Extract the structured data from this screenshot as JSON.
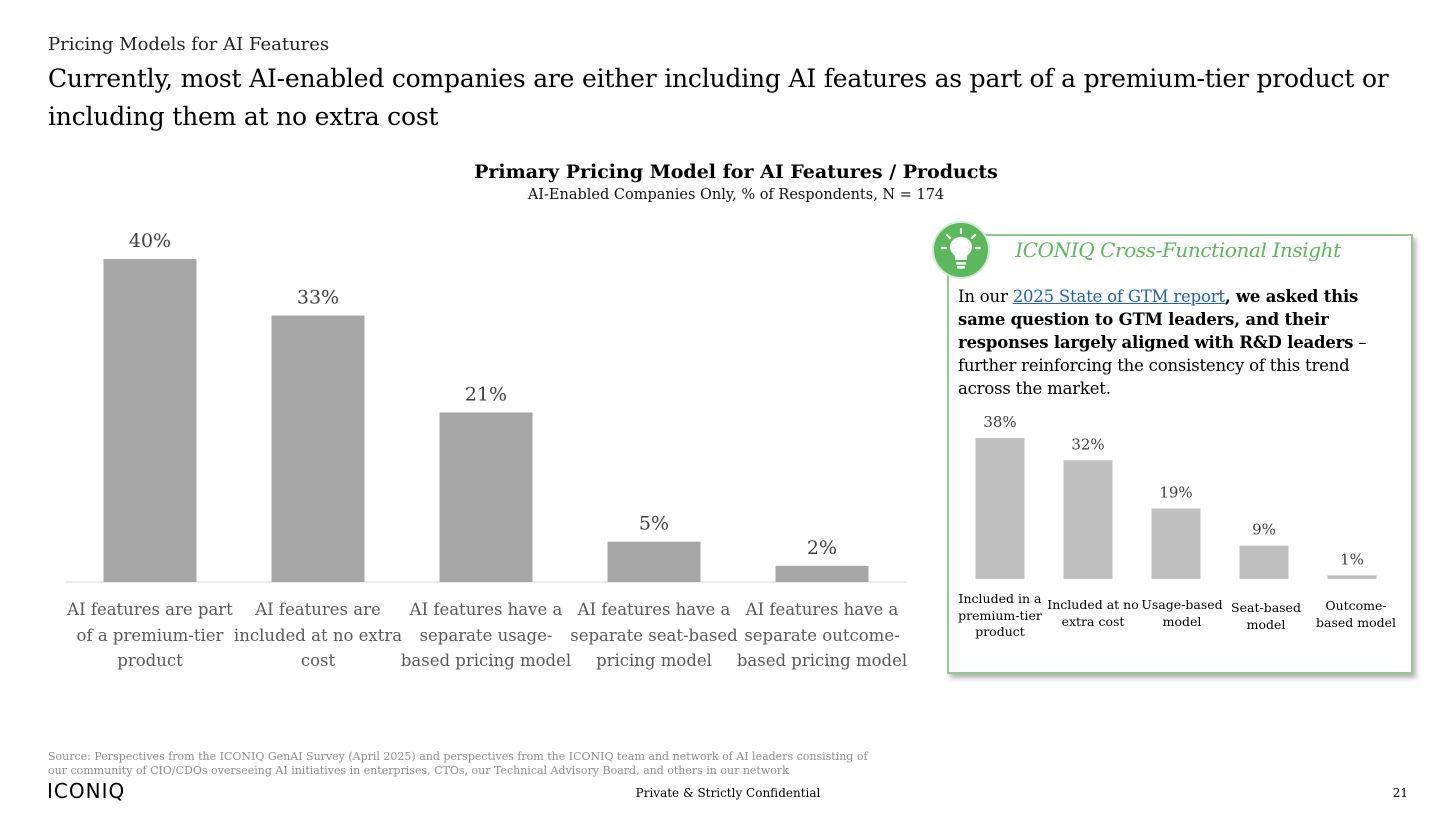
{
  "eyebrow": "Pricing Models for AI Features",
  "headline": "Currently, most AI-enabled companies are either including AI features as part of a premium-tier product or including them at no extra cost",
  "chart_data": [
    {
      "type": "bar",
      "title": "Primary Pricing Model for AI Features / Products",
      "subtitle": "AI-Enabled Companies Only, % of Respondents, N = 174",
      "categories": [
        "AI features are part of a premium-tier product",
        "AI features are included at no extra cost",
        "AI features have a separate usage-based pricing model",
        "AI features have a separate seat-based pricing model",
        "AI features have a separate outcome-based pricing model"
      ],
      "values": [
        40,
        33,
        21,
        5,
        2
      ],
      "data_labels": [
        "40%",
        "33%",
        "21%",
        "5%",
        "2%"
      ],
      "unit": "%",
      "ylim": [
        0,
        40
      ],
      "grid": false,
      "bar_color": "#a6a6a6"
    },
    {
      "type": "bar",
      "categories": [
        "Included in a premium-tier product",
        "Included at no extra cost",
        "Usage-based model",
        "Seat-based model",
        "Outcome-based model"
      ],
      "values": [
        38,
        32,
        19,
        9,
        1
      ],
      "data_labels": [
        "38%",
        "32%",
        "19%",
        "9%",
        "1%"
      ],
      "unit": "%",
      "ylim": [
        0,
        38
      ],
      "grid": false,
      "bar_color": "#bfbfbf"
    }
  ],
  "insight": {
    "title": "ICONIQ Cross-Functional Insight",
    "icon": "lightbulb-icon",
    "text_prefix": "In our ",
    "link_text": "2025 State of GTM report",
    "text_bold": ", we asked this same question to GTM leaders, and their responses largely aligned with R&D leaders",
    "text_suffix": " – further reinforcing the consistency of this trend across the market."
  },
  "footnote": "Source: Perspectives from the ICONIQ GenAI Survey (April 2025) and perspectives from the ICONIQ team and network of AI leaders consisting of our community of CIO/CDOs overseeing AI initiatives in enterprises, CTOs, our Technical Advisory Board, and others in our network",
  "logo_text": "ICONIQ",
  "confidential": "Private & Strictly Confidential",
  "page_number": "21",
  "colors": {
    "accent_green": "#5cb85c",
    "box_border": "#8fc98f",
    "link_blue": "#1f5fbf",
    "main_bar": "#a6a6a6",
    "mini_bar": "#bfbfbf",
    "axis_label": "#595959"
  }
}
